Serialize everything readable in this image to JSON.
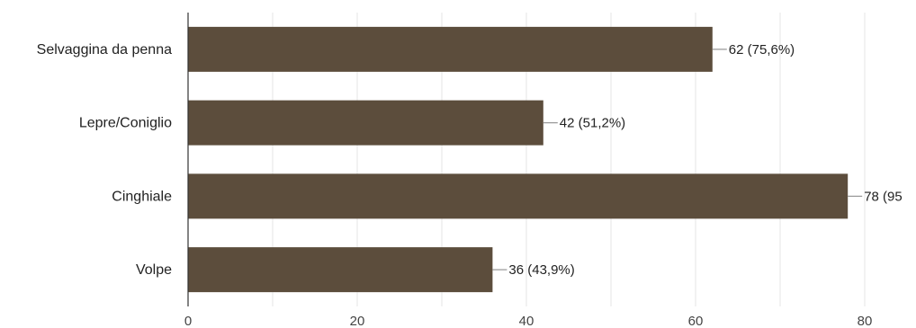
{
  "chart_data": {
    "type": "bar",
    "orientation": "horizontal",
    "categories": [
      "Selvaggina da penna",
      "Lepre/Coniglio",
      "Cinghiale",
      "Volpe"
    ],
    "values": [
      62,
      42,
      78,
      36
    ],
    "data_labels": [
      "62 (75,6%)",
      "42 (51,2%)",
      "78 (95",
      "36 (43,9%)"
    ],
    "xlim": [
      0,
      80
    ],
    "xticks": [
      0,
      20,
      40,
      60,
      80
    ],
    "tick_labels": [
      "0",
      "20",
      "40",
      "60",
      "80"
    ],
    "grid": true,
    "legend": "none",
    "bar_color": "#5c4d3c",
    "grid_color": "#e6e6e6",
    "axis_color": "#333333",
    "leader_color": "#999999"
  }
}
